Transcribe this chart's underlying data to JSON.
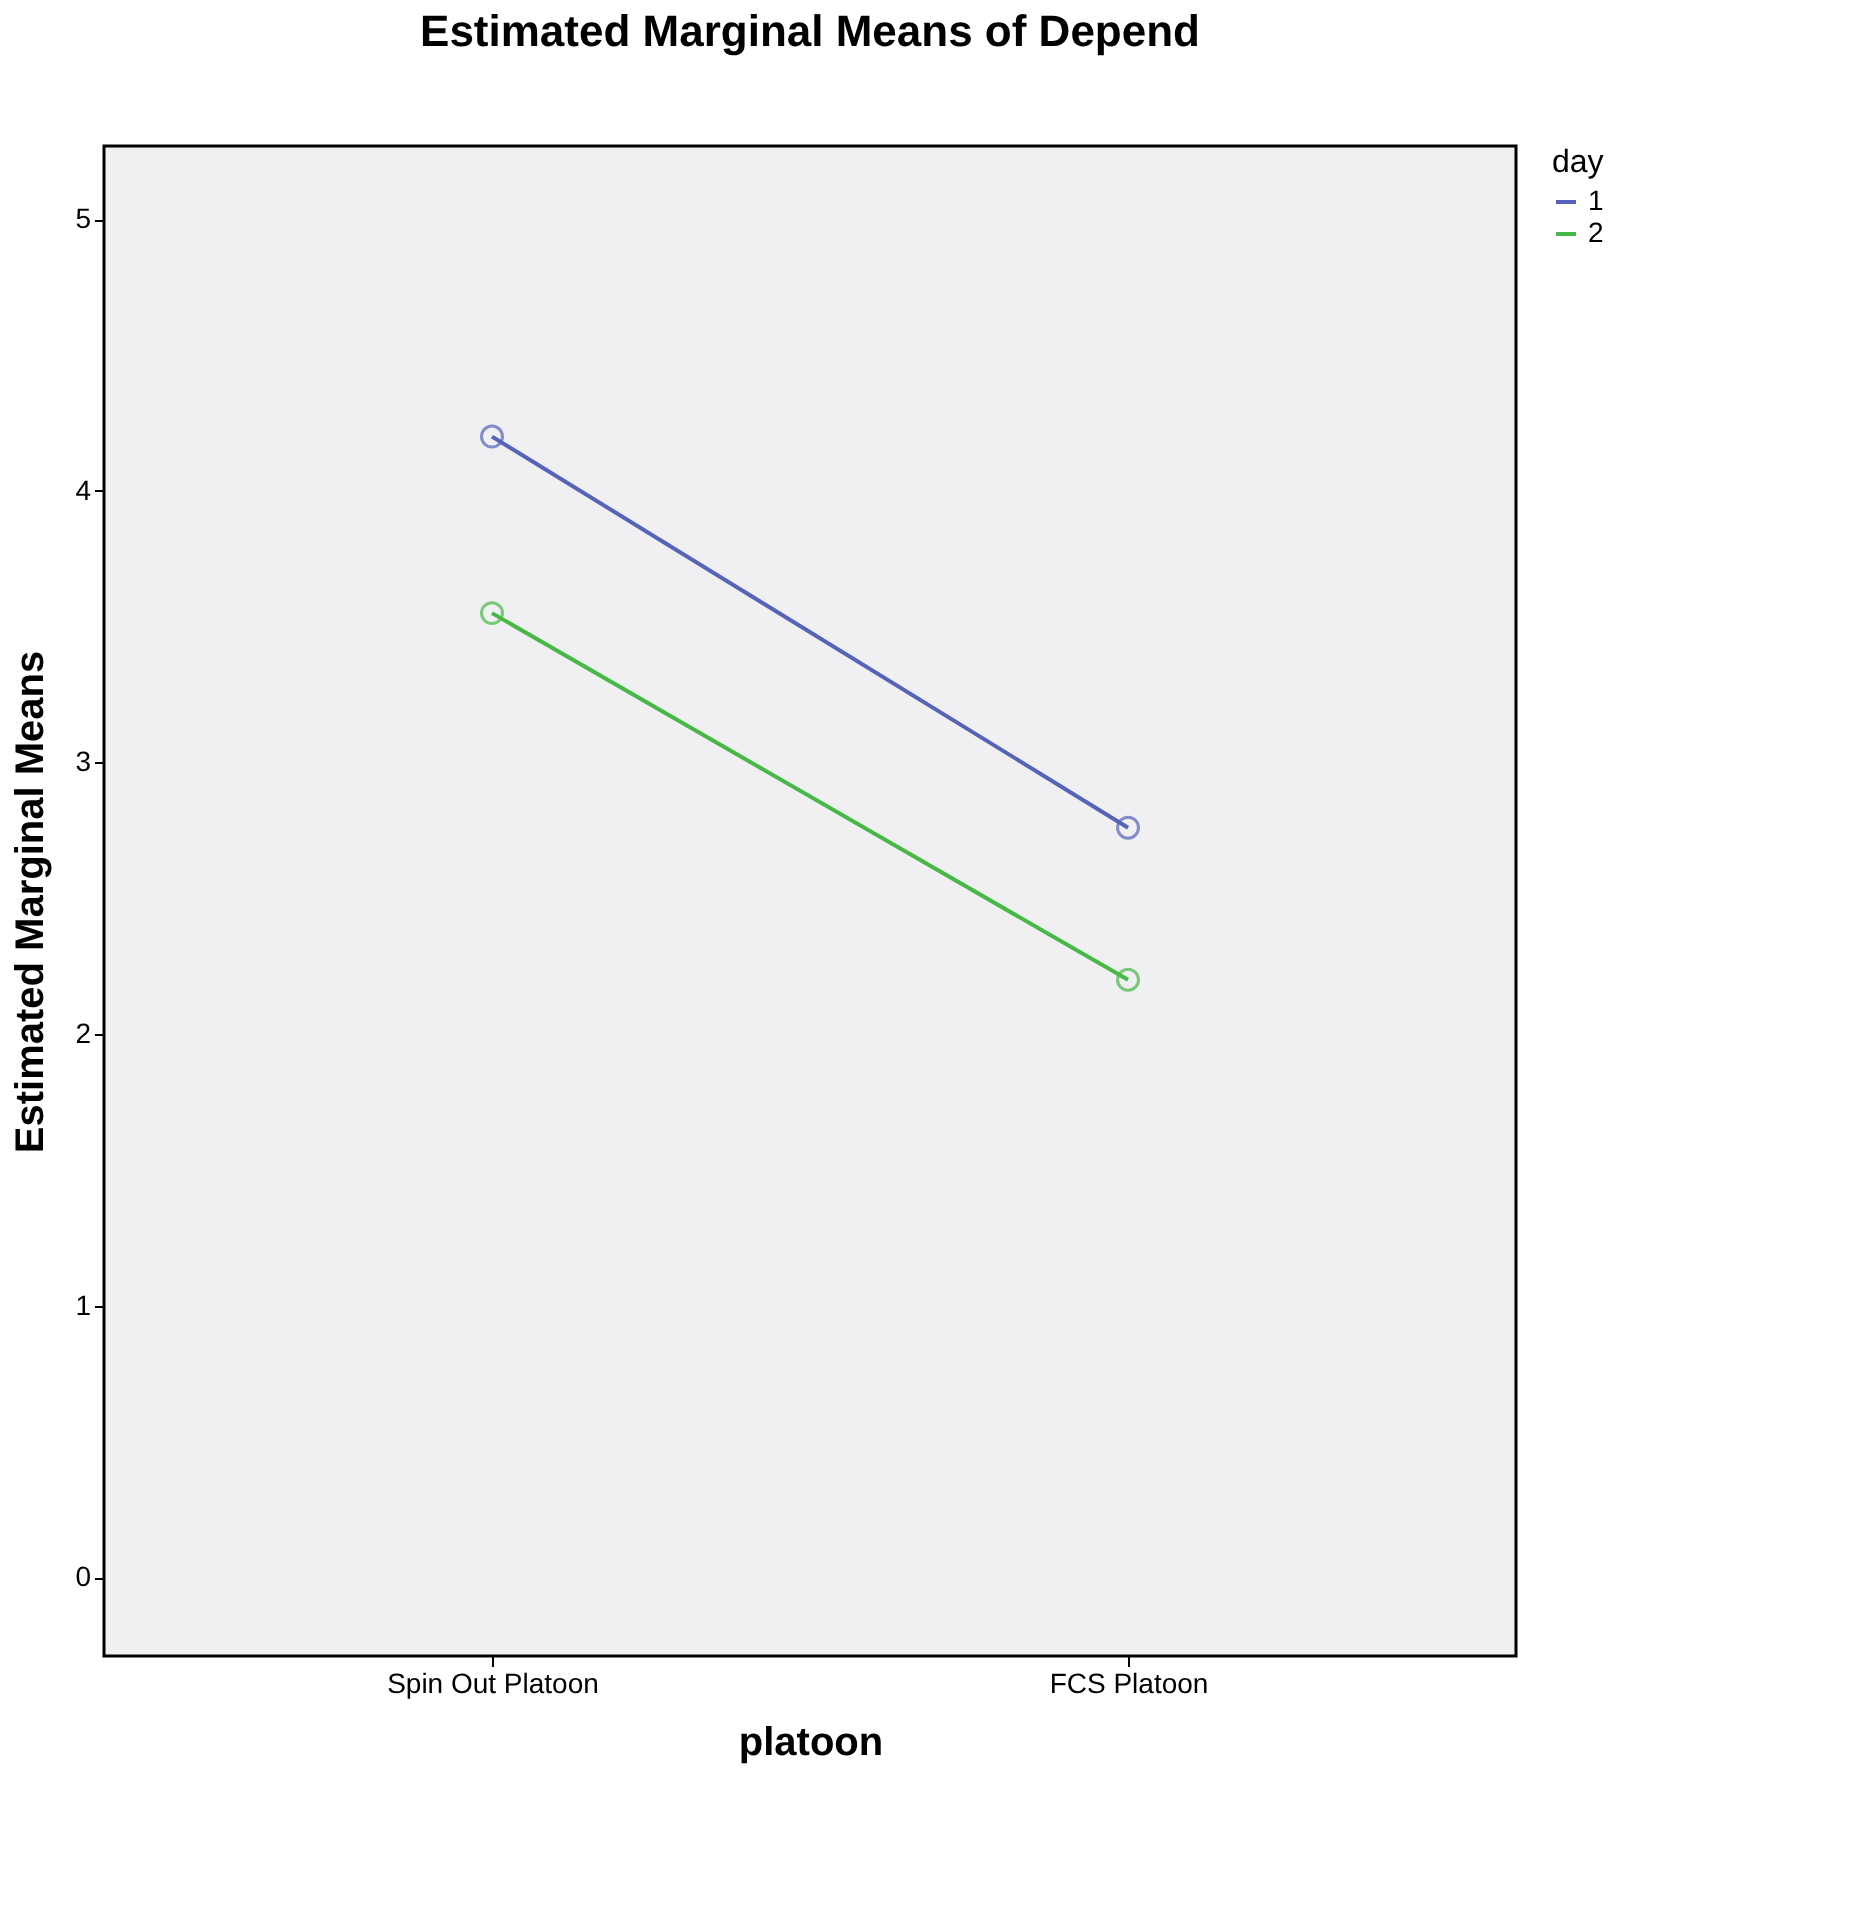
{
  "chart_data": {
    "type": "line",
    "title": "Estimated Marginal Means of Depend",
    "xlabel": "platoon",
    "ylabel": "Estimated Marginal Means",
    "legend_title": "day",
    "categories": [
      "Spin Out Platoon",
      "FCS Platoon"
    ],
    "series": [
      {
        "name": "1",
        "color": "#5563b8",
        "values": [
          4.2,
          2.76
        ]
      },
      {
        "name": "2",
        "color": "#46b846",
        "values": [
          3.55,
          2.2
        ]
      }
    ],
    "ylim": [
      -0.29,
      5.27
    ],
    "yticks": [
      0,
      1,
      2,
      3,
      4,
      5
    ],
    "marker": "circle",
    "line_style": "solid",
    "legend": "top right",
    "grid": false
  }
}
